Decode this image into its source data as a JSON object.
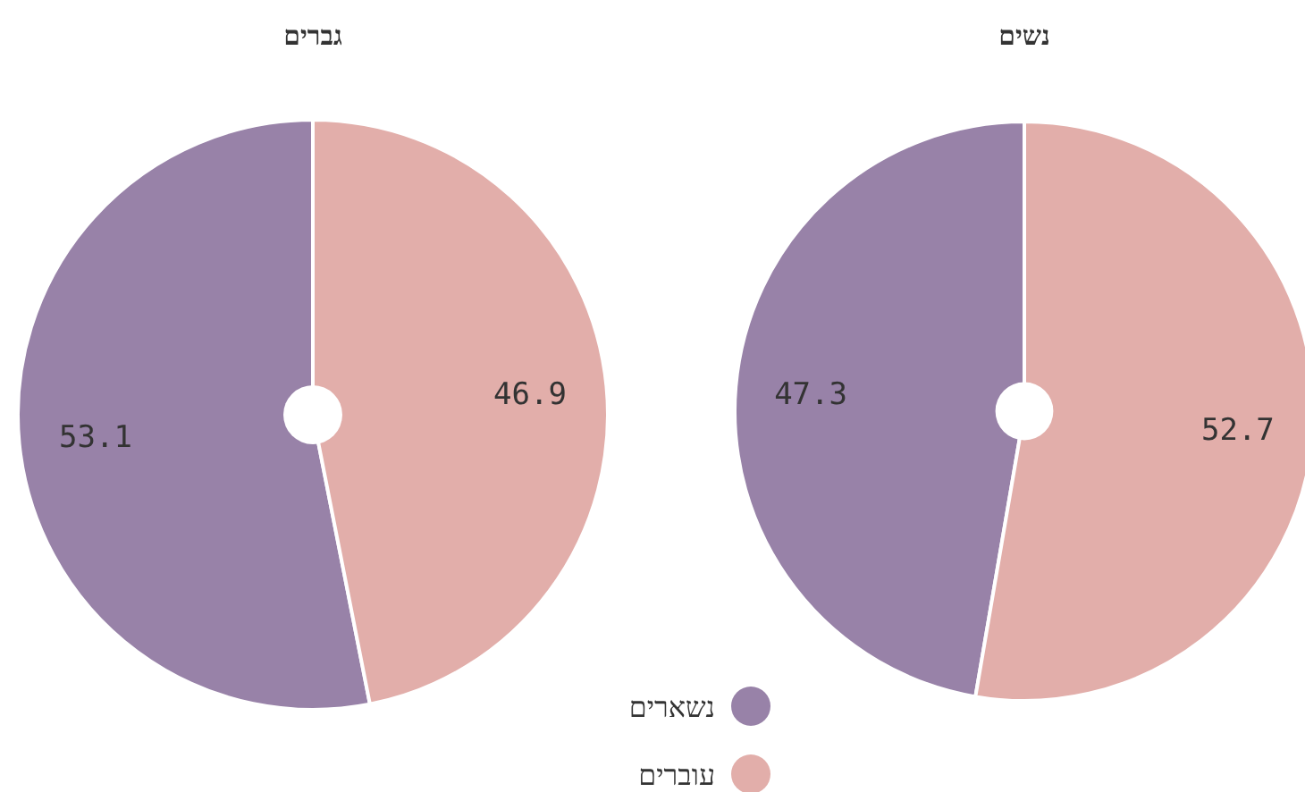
{
  "chart_data": [
    {
      "type": "pie",
      "title": "גברים",
      "categories": [
        "נשארים",
        "עוברים"
      ],
      "values": [
        53.1,
        46.9
      ],
      "colors": [
        "#9882a8",
        "#e2aeaa"
      ],
      "data_labels": true,
      "legend": "bottom"
    },
    {
      "type": "pie",
      "title": "נשים",
      "values": [
        47.3,
        52.7
      ],
      "colors": [
        "#9882a8",
        "#e2aeaa"
      ],
      "data_labels": true
    }
  ]
}
